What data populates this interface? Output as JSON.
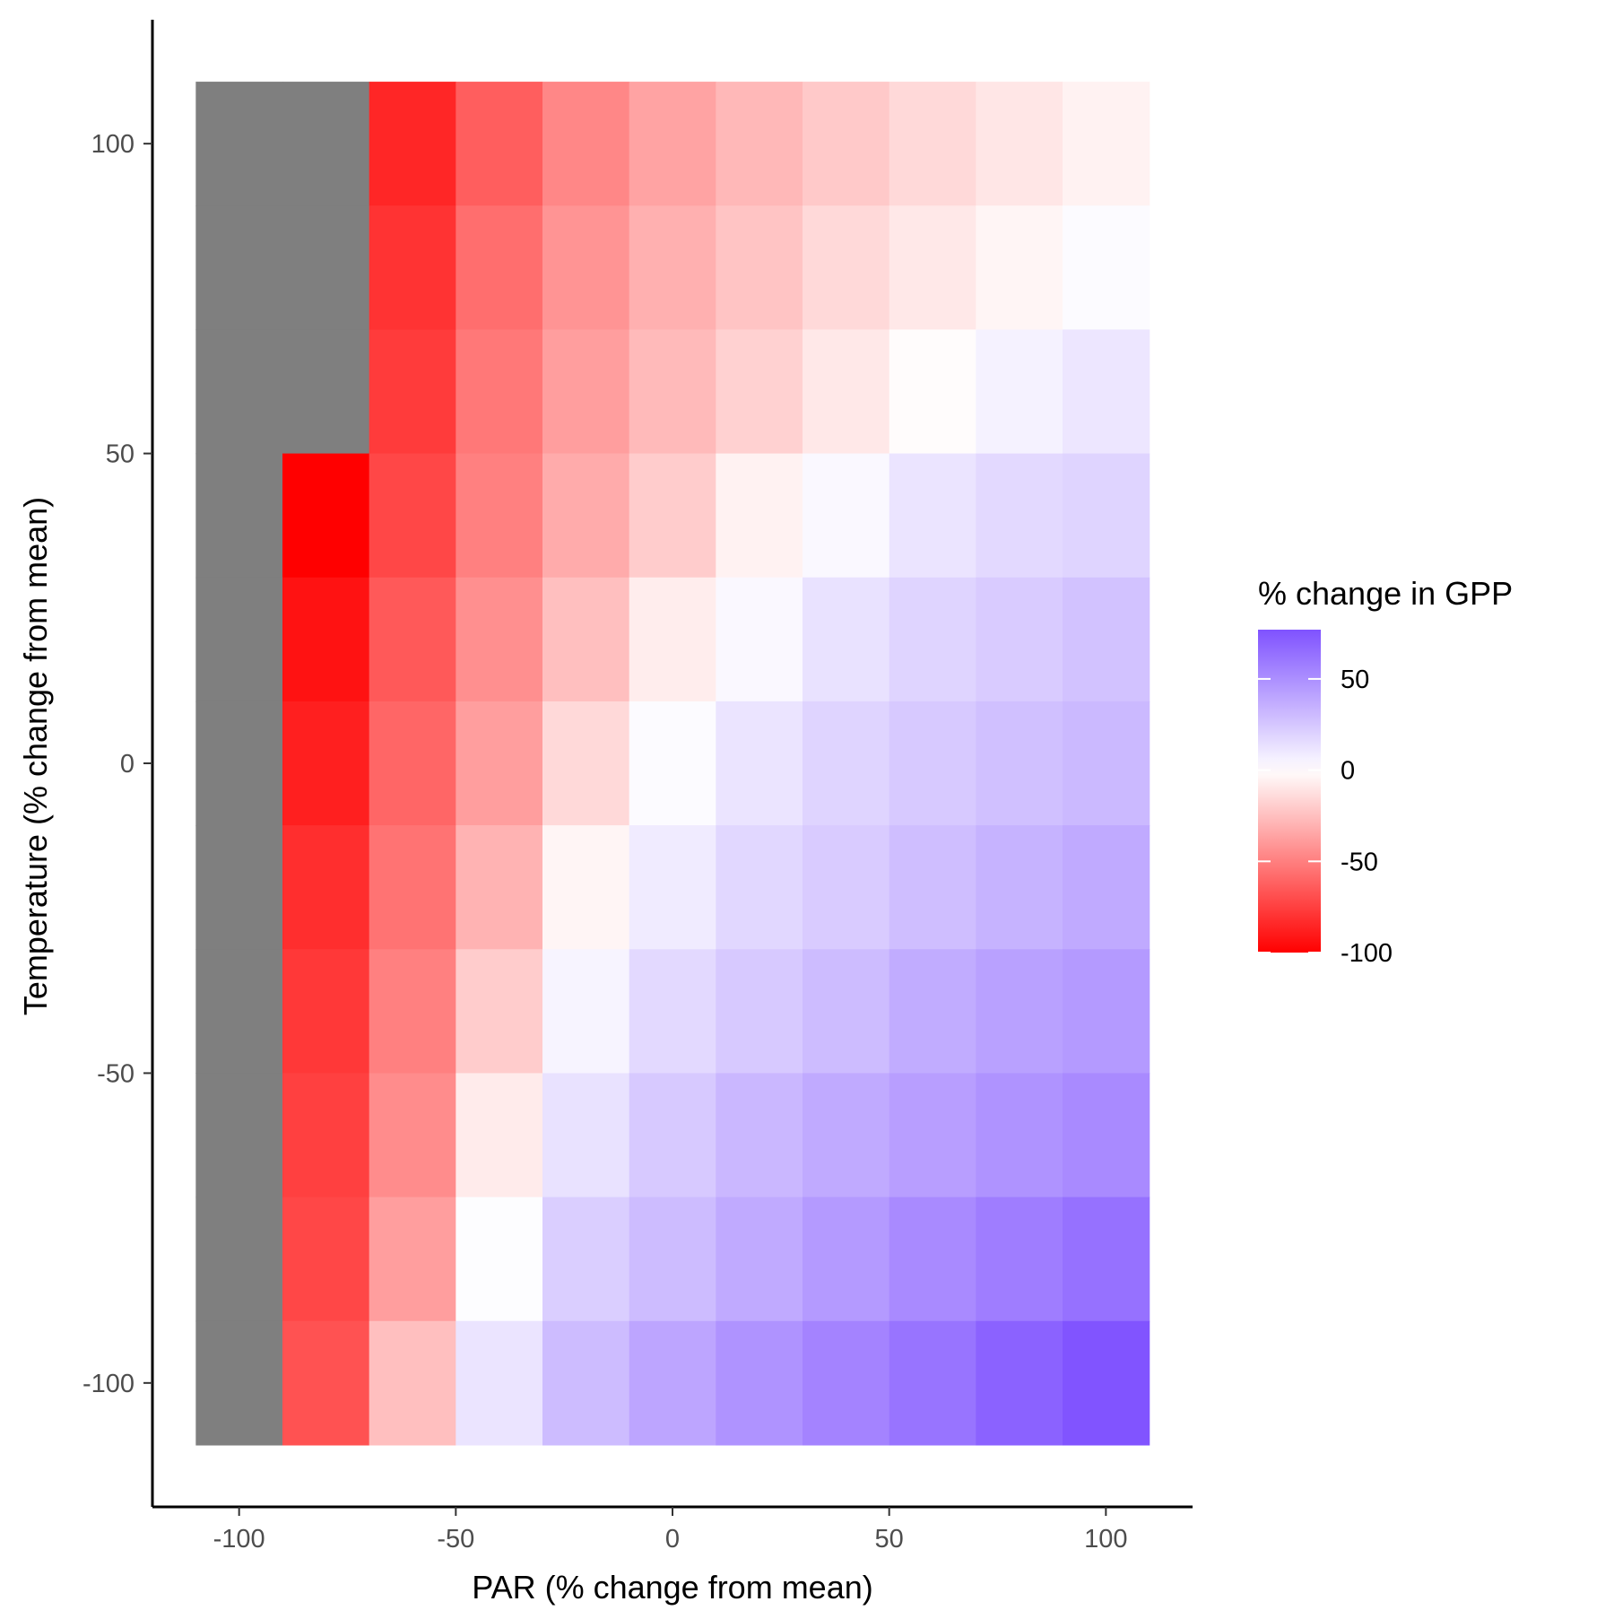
{
  "chart_data": {
    "type": "heatmap",
    "title": "",
    "xlabel": "PAR (% change from mean)",
    "ylabel": "Temperature (% change from mean)",
    "x": [
      -100,
      -80,
      -60,
      -40,
      -20,
      0,
      20,
      40,
      60,
      80,
      100
    ],
    "y": [
      100,
      80,
      60,
      40,
      20,
      0,
      -20,
      -40,
      -60,
      -80,
      -100
    ],
    "xlim": [
      -120,
      120
    ],
    "ylim": [
      -120,
      120
    ],
    "x_ticks": [
      -100,
      -50,
      0,
      50,
      100
    ],
    "y_ticks": [
      -100,
      -50,
      0,
      50,
      100
    ],
    "z": [
      [
        null,
        null,
        -85,
        -63,
        -47,
        -36,
        -28,
        -21,
        -15,
        -10,
        -5
      ],
      [
        null,
        null,
        -80,
        -57,
        -42,
        -31,
        -23,
        -15,
        -9,
        -4,
        2
      ],
      [
        null,
        null,
        -77,
        -53,
        -38,
        -27,
        -18,
        -9,
        -1,
        6,
        11
      ],
      [
        null,
        -100,
        -72,
        -50,
        -33,
        -20,
        -5,
        3,
        12,
        17,
        19
      ],
      [
        null,
        -93,
        -65,
        -44,
        -25,
        -7,
        3,
        13,
        19,
        23,
        27
      ],
      [
        null,
        -88,
        -60,
        -38,
        -15,
        2,
        12,
        19,
        24,
        28,
        31
      ],
      [
        null,
        -82,
        -55,
        -30,
        -4,
        9,
        18,
        23,
        29,
        34,
        38
      ],
      [
        null,
        -78,
        -50,
        -20,
        5,
        17,
        24,
        30,
        37,
        42,
        45
      ],
      [
        null,
        -75,
        -45,
        -8,
        13,
        24,
        32,
        38,
        43,
        48,
        52
      ],
      [
        null,
        -72,
        -38,
        1,
        22,
        30,
        38,
        45,
        52,
        58,
        63
      ],
      [
        null,
        -68,
        -25,
        12,
        30,
        40,
        48,
        55,
        62,
        70,
        76
      ]
    ],
    "na_color": "#7f7f7f",
    "colorscale": {
      "low": "#ff0000",
      "mid": "#ffffff",
      "high": "#7f52ff",
      "midpoint": 0
    },
    "legend": {
      "title": "% change in GPP",
      "ticks": [
        50,
        0,
        -50,
        -100
      ],
      "range": [
        -100,
        77
      ],
      "position": "right"
    },
    "grid": false
  }
}
